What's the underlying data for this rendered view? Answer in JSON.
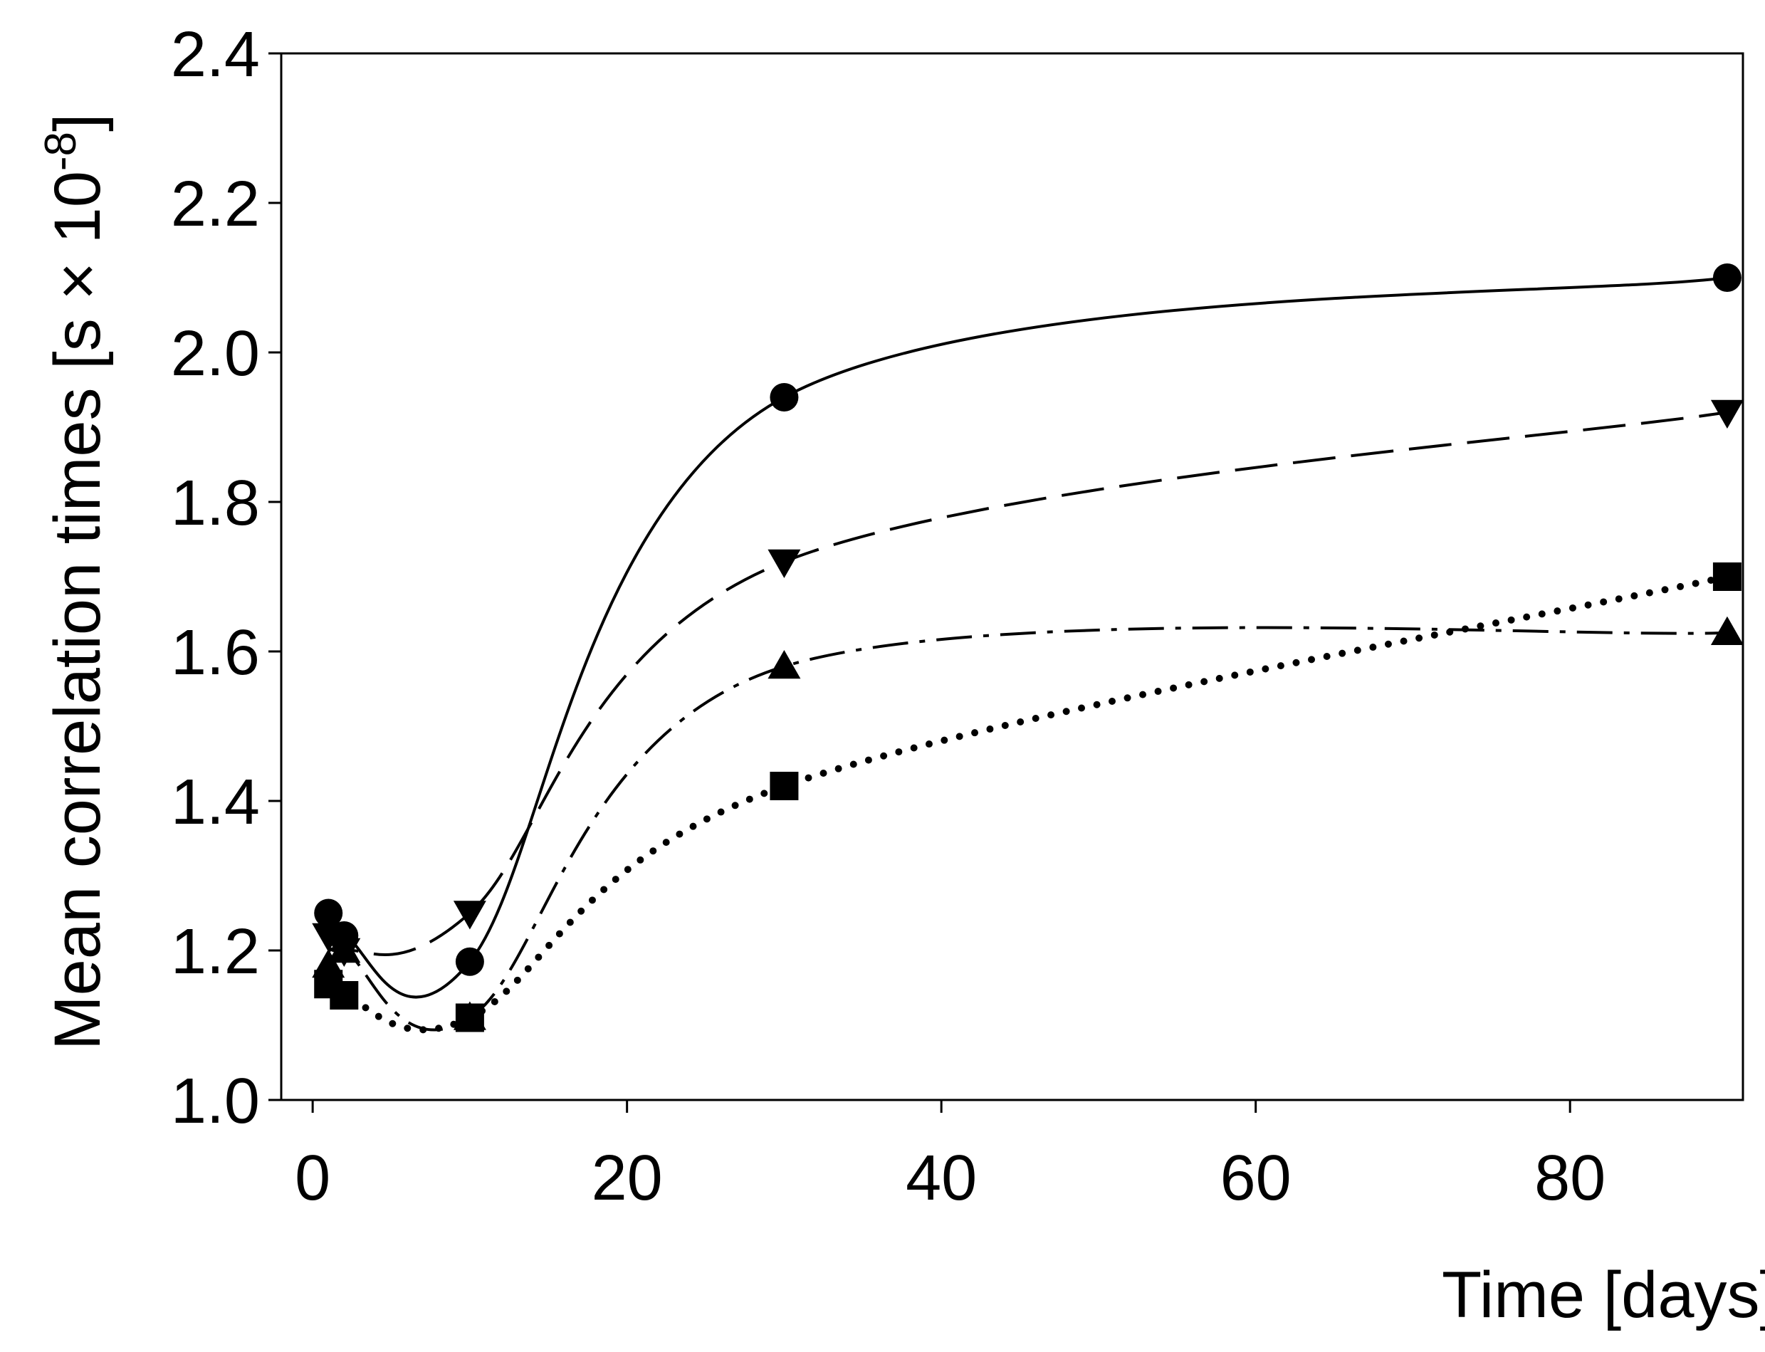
{
  "chart_data": {
    "type": "line",
    "title": "",
    "xlabel": "Time [days]",
    "ylabel": {
      "base": "Mean correlation times [s × 10",
      "exponent": "-8",
      "close": "]"
    },
    "xlim": [
      -2,
      91
    ],
    "ylim": [
      1.0,
      2.4
    ],
    "xticks": [
      0,
      20,
      40,
      60,
      80
    ],
    "yticks": [
      1.0,
      1.2,
      1.4,
      1.6,
      1.8,
      2.0,
      2.2,
      2.4
    ],
    "ytick_labels": [
      "1.0",
      "1.2",
      "1.4",
      "1.6",
      "1.8",
      "2.0",
      "2.2",
      "2.4"
    ],
    "xtick_labels": [
      "0",
      "20",
      "40",
      "60",
      "80"
    ],
    "grid": false,
    "legend": "none",
    "series": [
      {
        "marker": "circle",
        "line_style": "solid",
        "color": "#000000",
        "x": [
          1,
          2,
          10,
          30,
          90
        ],
        "y": [
          1.25,
          1.22,
          1.185,
          1.94,
          2.1
        ]
      },
      {
        "marker": "triangle-down",
        "line_style": "long-dash",
        "color": "#000000",
        "x": [
          1,
          2,
          10,
          30,
          90
        ],
        "y": [
          1.22,
          1.2,
          1.25,
          1.72,
          1.92
        ]
      },
      {
        "marker": "triangle-up",
        "line_style": "dash-dot",
        "color": "#000000",
        "x": [
          1,
          2,
          10,
          30,
          90
        ],
        "y": [
          1.18,
          1.2,
          1.11,
          1.58,
          1.625
        ]
      },
      {
        "marker": "square",
        "line_style": "dotted",
        "color": "#000000",
        "x": [
          1,
          2,
          10,
          30,
          90
        ],
        "y": [
          1.155,
          1.14,
          1.11,
          1.42,
          1.7
        ]
      }
    ]
  }
}
